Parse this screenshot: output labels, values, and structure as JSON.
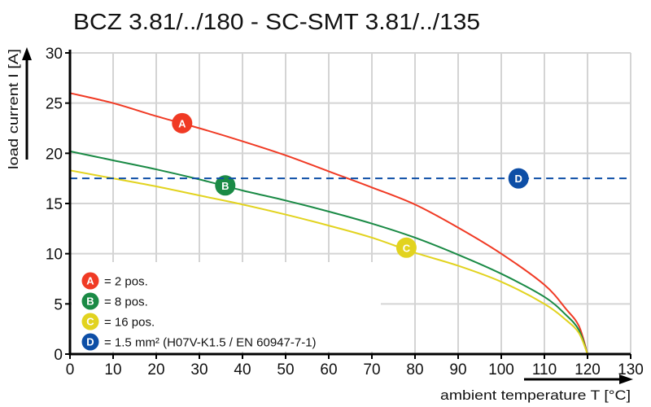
{
  "chart_data": {
    "type": "line",
    "title": "BCZ 3.81/../180 - SC-SMT 3.81/../135",
    "xlabel": "ambient temperature T [°C]",
    "ylabel": "load current I [A]",
    "xlim": [
      0,
      130
    ],
    "ylim": [
      0,
      30
    ],
    "xticks": [
      0,
      10,
      20,
      30,
      40,
      50,
      60,
      70,
      80,
      90,
      100,
      110,
      120,
      130
    ],
    "yticks": [
      0,
      5,
      10,
      15,
      20,
      25,
      30
    ],
    "grid": true,
    "legend_position": "bottom-left",
    "series": [
      {
        "id": "A",
        "name": "= 2 pos.",
        "color": "#f03a24",
        "dashed": false,
        "x": [
          0,
          10,
          20,
          30,
          40,
          50,
          60,
          70,
          80,
          90,
          100,
          110,
          115,
          118,
          120
        ],
        "y": [
          26.0,
          25.0,
          23.7,
          22.5,
          21.2,
          19.8,
          18.2,
          16.6,
          14.9,
          12.6,
          10.0,
          6.9,
          4.5,
          2.8,
          0
        ],
        "marker_at": [
          26,
          23.0
        ]
      },
      {
        "id": "B",
        "name": "= 8 pos.",
        "color": "#1a8a45",
        "dashed": false,
        "x": [
          0,
          10,
          20,
          30,
          40,
          50,
          60,
          70,
          80,
          90,
          100,
          110,
          115,
          118,
          120
        ],
        "y": [
          20.2,
          19.3,
          18.4,
          17.4,
          16.3,
          15.3,
          14.2,
          13.0,
          11.6,
          9.9,
          8.0,
          5.7,
          3.9,
          2.4,
          0
        ],
        "marker_at": [
          36,
          16.8
        ]
      },
      {
        "id": "C",
        "name": "= 16 pos.",
        "color": "#e2d31f",
        "dashed": false,
        "x": [
          0,
          10,
          20,
          30,
          40,
          50,
          60,
          70,
          80,
          90,
          100,
          110,
          115,
          118,
          120
        ],
        "y": [
          18.3,
          17.5,
          16.7,
          15.8,
          14.9,
          13.9,
          12.8,
          11.6,
          10.1,
          8.8,
          7.2,
          5.0,
          3.4,
          2.1,
          0
        ],
        "marker_at": [
          78,
          10.6
        ]
      },
      {
        "id": "D",
        "name": "= 1.5 mm² (H07V-K1.5 / EN 60947-7-1)",
        "color": "#0d4ea6",
        "dashed": true,
        "x": [
          0,
          130
        ],
        "y": [
          17.5,
          17.5
        ],
        "marker_at": [
          104,
          17.5
        ]
      }
    ]
  }
}
